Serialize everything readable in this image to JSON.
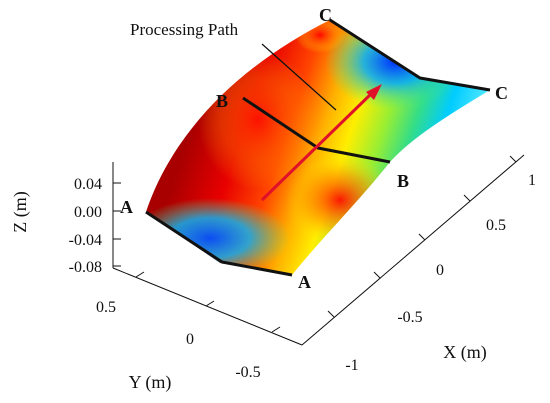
{
  "callout": {
    "text": "Processing Path"
  },
  "points": {
    "a": "A",
    "b": "B",
    "c": "C"
  },
  "axes": {
    "z": {
      "title": "Z (m)",
      "ticks": [
        "0.04",
        "0.00",
        "-0.04",
        "-0.08"
      ]
    },
    "y": {
      "title": "Y (m)",
      "ticks": [
        "0.5",
        "0",
        "-0.5"
      ]
    },
    "x": {
      "title": "X (m)",
      "ticks": [
        "1",
        "0.5",
        "0",
        "-0.5",
        "-1"
      ]
    }
  },
  "colors": {
    "path_arrow": "#e0102a",
    "cut_lines": "#111111",
    "surface_gradient": [
      "#d00000",
      "#ff8800",
      "#ffee00",
      "#44dd44",
      "#00ccff",
      "#0044ff"
    ]
  }
}
